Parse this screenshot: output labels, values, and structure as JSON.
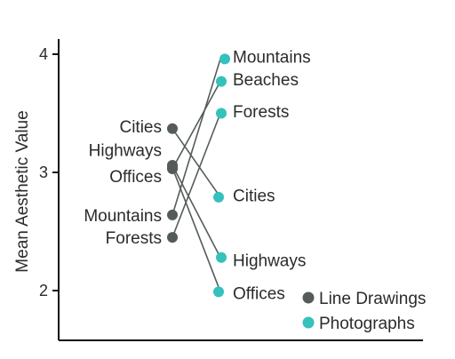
{
  "chart_data": {
    "type": "scatter",
    "ylabel": "Mean Aesthetic Value",
    "xlabel": "",
    "ylim": [
      1.6,
      4.2
    ],
    "yticks": [
      2,
      3,
      4
    ],
    "grid": false,
    "legend_position": "bottom-right",
    "categories": [
      "Mountains",
      "Beaches",
      "Forests",
      "Cities",
      "Highways",
      "Offices"
    ],
    "series": [
      {
        "name": "Line Drawings",
        "color": "#555b5b",
        "points": [
          {
            "category": "Cities",
            "y": 3.37
          },
          {
            "category": "Highways",
            "y": 3.06
          },
          {
            "category": "Beaches",
            "y": 3.03
          },
          {
            "category": "Offices",
            "y": 3.04
          },
          {
            "category": "Mountains",
            "y": 2.64
          },
          {
            "category": "Forests",
            "y": 2.45
          }
        ]
      },
      {
        "name": "Photographs",
        "color": "#35c1bd",
        "points": [
          {
            "category": "Mountains",
            "y": 3.96
          },
          {
            "category": "Beaches",
            "y": 3.77
          },
          {
            "category": "Forests",
            "y": 3.5
          },
          {
            "category": "Cities",
            "y": 2.79
          },
          {
            "category": "Highways",
            "y": 2.28
          },
          {
            "category": "Offices",
            "y": 1.99
          }
        ]
      }
    ],
    "left_labels": [
      {
        "text": "Cities",
        "y": 3.39
      },
      {
        "text": "Highways",
        "y": 3.19
      },
      {
        "text": "Offices",
        "y": 2.97
      },
      {
        "text": "Mountains",
        "y": 2.64
      },
      {
        "text": "Forests",
        "y": 2.45
      }
    ],
    "right_labels": [
      {
        "text": "Mountains",
        "y": 3.98
      },
      {
        "text": "Beaches",
        "y": 3.79
      },
      {
        "text": "Forests",
        "y": 3.52
      },
      {
        "text": "Cities",
        "y": 2.81
      },
      {
        "text": "Highways",
        "y": 2.26
      },
      {
        "text": "Offices",
        "y": 1.98
      }
    ]
  }
}
